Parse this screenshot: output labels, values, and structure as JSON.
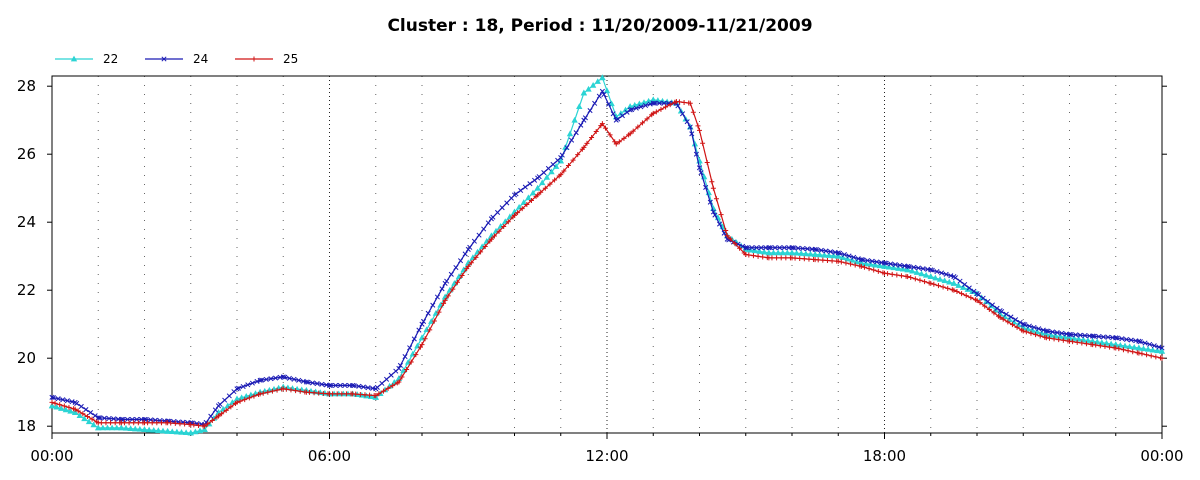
{
  "chart_data": {
    "type": "line",
    "title": "Cluster : 18, Period : 11/20/2009-11/21/2009",
    "xlabel": "",
    "ylabel": "",
    "x_range_hours": [
      0,
      24
    ],
    "ylim": [
      17.8,
      28.3
    ],
    "x_tick_labels": [
      "00:00",
      "06:00",
      "12:00",
      "18:00",
      "00:00"
    ],
    "y_ticks": [
      18,
      20,
      22,
      24,
      26,
      28
    ],
    "grid": "dotted",
    "legend_position": "top-left",
    "x_hours": [
      0,
      0.5,
      1,
      1.5,
      2,
      2.5,
      3,
      3.3,
      3.6,
      4,
      4.5,
      5,
      5.5,
      6,
      6.5,
      7,
      7.5,
      8,
      8.5,
      9,
      9.5,
      10,
      10.5,
      11,
      11.5,
      11.9,
      12.2,
      12.5,
      13,
      13.5,
      13.8,
      14,
      14.3,
      14.6,
      15,
      15.5,
      16,
      16.5,
      17,
      17.5,
      18,
      18.5,
      19,
      19.5,
      20,
      20.5,
      21,
      21.5,
      22,
      22.5,
      23,
      23.5,
      24
    ],
    "series": [
      {
        "name": "22",
        "color": "#2bd4d4",
        "marker": "triangle",
        "values": [
          18.6,
          18.4,
          17.95,
          17.95,
          17.9,
          17.85,
          17.8,
          17.9,
          18.4,
          18.8,
          19.0,
          19.15,
          19.05,
          18.95,
          18.95,
          18.85,
          19.4,
          20.6,
          21.8,
          22.8,
          23.6,
          24.3,
          25.0,
          25.8,
          27.8,
          28.25,
          27.1,
          27.4,
          27.6,
          27.5,
          26.8,
          25.8,
          24.4,
          23.6,
          23.2,
          23.1,
          23.1,
          23.05,
          23.0,
          22.8,
          22.7,
          22.6,
          22.4,
          22.2,
          21.9,
          21.3,
          20.9,
          20.7,
          20.6,
          20.5,
          20.4,
          20.3,
          20.2
        ]
      },
      {
        "name": "24",
        "color": "#1a1ab4",
        "marker": "x",
        "values": [
          18.85,
          18.7,
          18.25,
          18.2,
          18.2,
          18.15,
          18.1,
          18.05,
          18.6,
          19.1,
          19.35,
          19.45,
          19.3,
          19.2,
          19.2,
          19.1,
          19.7,
          21.0,
          22.2,
          23.2,
          24.1,
          24.8,
          25.3,
          25.9,
          27.0,
          27.85,
          27.0,
          27.3,
          27.5,
          27.5,
          26.8,
          25.6,
          24.3,
          23.5,
          23.25,
          23.25,
          23.25,
          23.2,
          23.1,
          22.9,
          22.8,
          22.7,
          22.6,
          22.4,
          21.9,
          21.4,
          21.0,
          20.8,
          20.7,
          20.65,
          20.6,
          20.5,
          20.3
        ]
      },
      {
        "name": "25",
        "color": "#d01414",
        "marker": "plus",
        "values": [
          18.7,
          18.5,
          18.1,
          18.1,
          18.1,
          18.1,
          18.05,
          18.0,
          18.3,
          18.7,
          18.95,
          19.1,
          19.0,
          18.95,
          18.95,
          18.9,
          19.3,
          20.4,
          21.7,
          22.7,
          23.5,
          24.2,
          24.8,
          25.4,
          26.2,
          26.9,
          26.3,
          26.6,
          27.2,
          27.55,
          27.5,
          26.7,
          25.0,
          23.6,
          23.05,
          22.95,
          22.95,
          22.9,
          22.85,
          22.7,
          22.5,
          22.4,
          22.2,
          22.0,
          21.7,
          21.2,
          20.8,
          20.6,
          20.5,
          20.4,
          20.3,
          20.15,
          20.0
        ]
      }
    ]
  }
}
